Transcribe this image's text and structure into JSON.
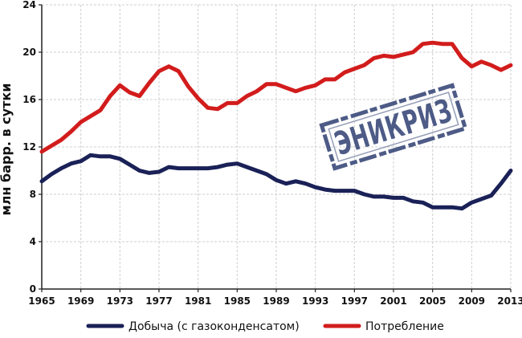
{
  "chart_data": {
    "type": "line",
    "title": "",
    "xlabel": "",
    "ylabel": "млн барр. в сутки",
    "xlim": [
      1965,
      2013
    ],
    "ylim": [
      0,
      24
    ],
    "y_ticks": [
      0,
      4,
      8,
      12,
      16,
      20,
      24
    ],
    "x_ticks": [
      1965,
      1969,
      1973,
      1977,
      1981,
      1985,
      1989,
      1993,
      1997,
      2001,
      2005,
      2009,
      2013
    ],
    "grid": true,
    "legend_position": "bottom",
    "series": [
      {
        "name": "Добыча (с газоконденсатом)",
        "color": "#1a2157",
        "x": [
          1965,
          1966,
          1967,
          1968,
          1969,
          1970,
          1971,
          1972,
          1973,
          1974,
          1975,
          1976,
          1977,
          1978,
          1979,
          1980,
          1981,
          1982,
          1983,
          1984,
          1985,
          1986,
          1987,
          1988,
          1989,
          1990,
          1991,
          1992,
          1993,
          1994,
          1995,
          1996,
          1997,
          1998,
          1999,
          2000,
          2001,
          2002,
          2003,
          2004,
          2005,
          2006,
          2007,
          2008,
          2009,
          2010,
          2011,
          2012,
          2013
        ],
        "values": [
          9.1,
          9.7,
          10.2,
          10.6,
          10.8,
          11.3,
          11.2,
          11.2,
          11.0,
          10.5,
          10.0,
          9.8,
          9.9,
          10.3,
          10.2,
          10.2,
          10.2,
          10.2,
          10.3,
          10.5,
          10.6,
          10.3,
          10.0,
          9.7,
          9.2,
          8.9,
          9.1,
          8.9,
          8.6,
          8.4,
          8.3,
          8.3,
          8.3,
          8.0,
          7.8,
          7.8,
          7.7,
          7.7,
          7.4,
          7.3,
          6.9,
          6.9,
          6.9,
          6.8,
          7.3,
          7.6,
          7.9,
          8.9,
          10.0
        ]
      },
      {
        "name": "Потребление",
        "color": "#d21c1c",
        "x": [
          1965,
          1966,
          1967,
          1968,
          1969,
          1970,
          1971,
          1972,
          1973,
          1974,
          1975,
          1976,
          1977,
          1978,
          1979,
          1980,
          1981,
          1982,
          1983,
          1984,
          1985,
          1986,
          1987,
          1988,
          1989,
          1990,
          1991,
          1992,
          1993,
          1994,
          1995,
          1996,
          1997,
          1998,
          1999,
          2000,
          2001,
          2002,
          2003,
          2004,
          2005,
          2006,
          2007,
          2008,
          2009,
          2010,
          2011,
          2012,
          2013
        ],
        "values": [
          11.6,
          12.1,
          12.6,
          13.3,
          14.1,
          14.6,
          15.1,
          16.3,
          17.2,
          16.6,
          16.3,
          17.4,
          18.4,
          18.8,
          18.4,
          17.1,
          16.1,
          15.3,
          15.2,
          15.7,
          15.7,
          16.3,
          16.7,
          17.3,
          17.3,
          17.0,
          16.7,
          17.0,
          17.2,
          17.7,
          17.7,
          18.3,
          18.6,
          18.9,
          19.5,
          19.7,
          19.6,
          19.8,
          20.0,
          20.7,
          20.8,
          20.7,
          20.7,
          19.5,
          18.8,
          19.2,
          18.9,
          18.5,
          18.9
        ]
      }
    ]
  },
  "stamp": {
    "text": "ЭНИКРИЗ",
    "color": "#3a4a7a"
  }
}
